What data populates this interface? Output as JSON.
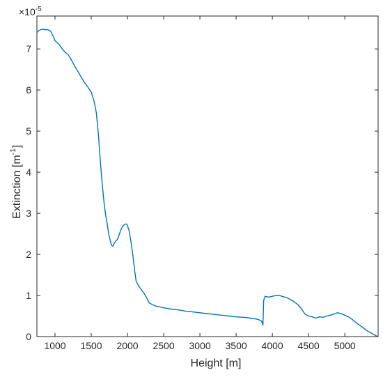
{
  "chart_data": {
    "type": "line",
    "title": "",
    "xlabel": "Height [m]",
    "ylabel_main": "Extinction [m",
    "ylabel_sup": "-1",
    "ylabel_close": "]",
    "y_multiplier": "×10",
    "y_multiplier_exp": "-5",
    "xlim": [
      750,
      5460
    ],
    "ylim": [
      0,
      7.8
    ],
    "xticks": [
      1000,
      1500,
      2000,
      2500,
      3000,
      3500,
      4000,
      4500,
      5000
    ],
    "yticks": [
      0,
      1,
      2,
      3,
      4,
      5,
      6,
      7
    ],
    "grid": false,
    "line_color": "#0072bd",
    "series": [
      {
        "x": [
          750,
          780,
          820,
          860,
          900,
          940,
          960,
          980,
          1000,
          1030,
          1060,
          1100,
          1140,
          1180,
          1220,
          1260,
          1300,
          1350,
          1400,
          1450,
          1500,
          1540,
          1570,
          1600,
          1620,
          1640,
          1660,
          1680,
          1700,
          1720,
          1740,
          1760,
          1780,
          1800,
          1820,
          1840,
          1860,
          1880,
          1900,
          1930,
          1960,
          1990,
          2020,
          2050,
          2080,
          2100,
          2120,
          2140,
          2160,
          2180,
          2200,
          2230,
          2260,
          2300,
          2350,
          2400,
          2450,
          2500,
          2600,
          2700,
          2800,
          2900,
          3000,
          3100,
          3200,
          3300,
          3400,
          3500,
          3600,
          3700,
          3800,
          3850,
          3870,
          3880,
          3900,
          3950,
          4000,
          4050,
          4100,
          4150,
          4200,
          4250,
          4300,
          4350,
          4400,
          4450,
          4500,
          4550,
          4600,
          4650,
          4700,
          4750,
          4800,
          4850,
          4900,
          4950,
          5000,
          5050,
          5100,
          5150,
          5200,
          5250,
          5300,
          5350,
          5400,
          5430,
          5460
        ],
        "y": [
          7.4,
          7.45,
          7.48,
          7.47,
          7.47,
          7.43,
          7.35,
          7.3,
          7.2,
          7.15,
          7.1,
          7.0,
          6.92,
          6.86,
          6.75,
          6.62,
          6.5,
          6.35,
          6.2,
          6.08,
          5.95,
          5.72,
          5.45,
          4.9,
          4.4,
          3.95,
          3.55,
          3.2,
          2.95,
          2.75,
          2.5,
          2.35,
          2.22,
          2.2,
          2.28,
          2.33,
          2.36,
          2.45,
          2.55,
          2.68,
          2.73,
          2.74,
          2.6,
          2.3,
          1.9,
          1.6,
          1.35,
          1.28,
          1.22,
          1.17,
          1.12,
          1.05,
          0.96,
          0.82,
          0.77,
          0.74,
          0.72,
          0.7,
          0.67,
          0.65,
          0.62,
          0.6,
          0.58,
          0.56,
          0.54,
          0.52,
          0.5,
          0.48,
          0.47,
          0.45,
          0.42,
          0.38,
          0.28,
          0.88,
          0.98,
          0.96,
          0.98,
          1.0,
          1.0,
          0.97,
          0.95,
          0.9,
          0.85,
          0.78,
          0.68,
          0.55,
          0.5,
          0.48,
          0.45,
          0.48,
          0.47,
          0.5,
          0.52,
          0.55,
          0.58,
          0.56,
          0.52,
          0.48,
          0.42,
          0.35,
          0.28,
          0.22,
          0.15,
          0.1,
          0.05,
          0.02,
          0.0
        ]
      }
    ]
  }
}
